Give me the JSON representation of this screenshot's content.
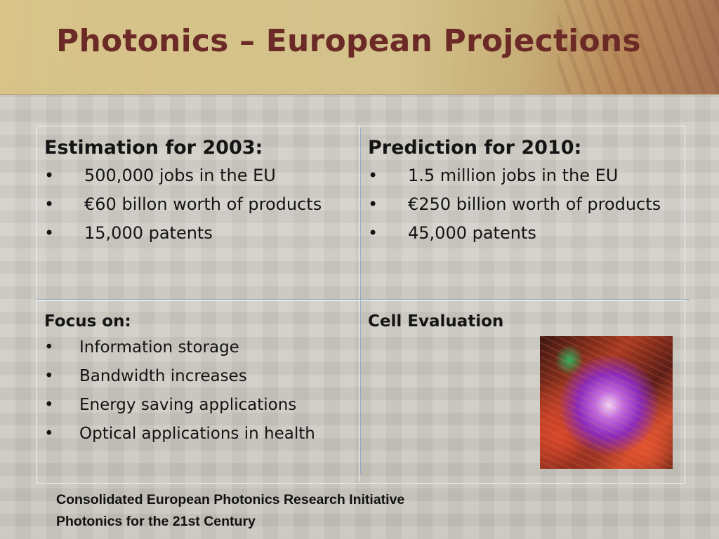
{
  "slide": {
    "title": "Photonics – European Projections"
  },
  "table": {
    "estimation": {
      "heading": "Estimation for 2003:",
      "items": [
        "500,000 jobs in the EU",
        "€60 billon worth of products",
        "15,000 patents"
      ]
    },
    "prediction": {
      "heading": "Prediction for 2010:",
      "items": [
        "1.5 million jobs in the EU",
        "€250 billion worth of products",
        "45,000 patents"
      ]
    },
    "focus": {
      "heading": "Focus on:",
      "items": [
        "Information storage",
        "Bandwidth increases",
        "Energy saving applications",
        "Optical applications in health"
      ]
    },
    "cell_evaluation": {
      "heading": "Cell Evaluation"
    }
  },
  "footer": {
    "line1": "Consolidated European Photonics Research Initiative",
    "line2": "Photonics for the 21st Century"
  },
  "bullet_char": "•",
  "colors": {
    "title": "#6c2a27",
    "title_band": "#d8c489",
    "grid_lines": "#f4f4f4",
    "blue_lines": "#8aa3c8"
  }
}
